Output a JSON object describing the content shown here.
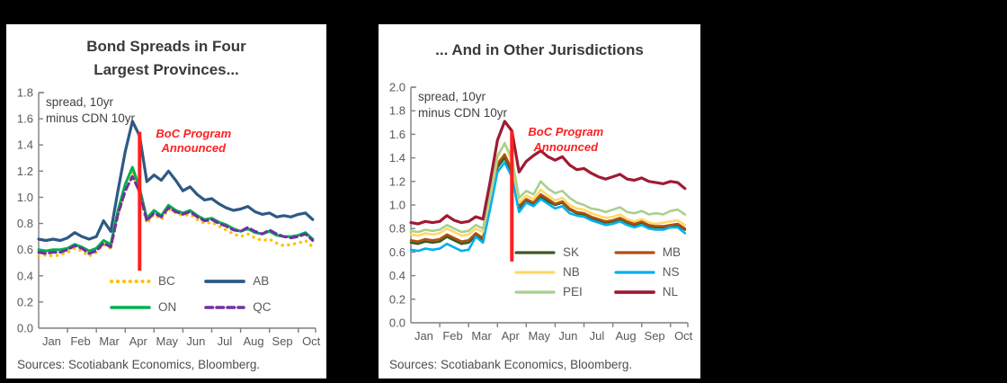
{
  "page": {
    "background": "#000000",
    "panel_background": "#ffffff"
  },
  "chart_data": [
    {
      "type": "line",
      "title": "Bond Spreads in Four\nLargest Provinces...",
      "axis_note": "spread, 10yr\nminus CDN 10yr",
      "source_note": "Sources: Scotiabank Economics, Bloomberg.",
      "x_categories": [
        "Jan",
        "Feb",
        "Mar",
        "Apr",
        "May",
        "Jun",
        "Jul",
        "Aug",
        "Sep",
        "Oct"
      ],
      "x_domain": [
        0,
        9.6
      ],
      "ylim": [
        0,
        1.8
      ],
      "y_tick_step": 0.2,
      "x_start": 0,
      "x_step": 0.25,
      "grid": false,
      "legend_position": "inside-lower-right",
      "annotation": {
        "label": "BoC Program\nAnnounced",
        "x": 3.5,
        "y_bottom": 0.44,
        "y_top": 1.5,
        "color": "#ff2020"
      },
      "legend_order": [
        "BC",
        "AB",
        "ON",
        "QC"
      ],
      "series": [
        {
          "name": "BC",
          "color": "#ffc000",
          "style": "dotted",
          "width": 3.4,
          "values": [
            0.55,
            0.56,
            0.55,
            0.56,
            0.58,
            0.61,
            0.59,
            0.55,
            0.58,
            0.64,
            0.61,
            0.86,
            1.04,
            1.19,
            1.02,
            0.8,
            0.87,
            0.83,
            0.91,
            0.88,
            0.86,
            0.87,
            0.83,
            0.8,
            0.81,
            0.78,
            0.75,
            0.72,
            0.7,
            0.72,
            0.69,
            0.67,
            0.68,
            0.65,
            0.63,
            0.64,
            0.65,
            0.67,
            0.62
          ]
        },
        {
          "name": "ON",
          "color": "#00b050",
          "style": "solid",
          "width": 3,
          "values": [
            0.6,
            0.59,
            0.6,
            0.6,
            0.61,
            0.64,
            0.62,
            0.59,
            0.61,
            0.67,
            0.64,
            0.9,
            1.1,
            1.23,
            1.07,
            0.84,
            0.9,
            0.86,
            0.94,
            0.9,
            0.88,
            0.9,
            0.86,
            0.83,
            0.84,
            0.81,
            0.79,
            0.76,
            0.74,
            0.76,
            0.73,
            0.72,
            0.74,
            0.71,
            0.7,
            0.7,
            0.71,
            0.73,
            0.68
          ]
        },
        {
          "name": "QC",
          "color": "#7030a0",
          "style": "dashed",
          "width": 3,
          "values": [
            0.58,
            0.57,
            0.58,
            0.58,
            0.6,
            0.63,
            0.61,
            0.57,
            0.59,
            0.65,
            0.62,
            0.87,
            1.05,
            1.16,
            1.04,
            0.82,
            0.88,
            0.85,
            0.92,
            0.89,
            0.87,
            0.89,
            0.85,
            0.82,
            0.83,
            0.8,
            0.78,
            0.75,
            0.74,
            0.77,
            0.74,
            0.72,
            0.75,
            0.72,
            0.7,
            0.69,
            0.7,
            0.72,
            0.67
          ]
        },
        {
          "name": "AB",
          "color": "#2e5984",
          "style": "solid",
          "width": 3.2,
          "values": [
            0.68,
            0.67,
            0.68,
            0.67,
            0.69,
            0.73,
            0.7,
            0.68,
            0.7,
            0.82,
            0.74,
            1.05,
            1.35,
            1.58,
            1.47,
            1.12,
            1.17,
            1.13,
            1.2,
            1.13,
            1.05,
            1.08,
            1.02,
            0.98,
            0.99,
            0.95,
            0.92,
            0.9,
            0.91,
            0.93,
            0.89,
            0.87,
            0.88,
            0.85,
            0.86,
            0.85,
            0.87,
            0.88,
            0.83
          ]
        }
      ]
    },
    {
      "type": "line",
      "title": "... And in Other Jurisdictions",
      "axis_note": "spread, 10yr\nminus CDN 10yr",
      "source_note": "Sources: Scotiabank Economics, Bloomberg.",
      "x_categories": [
        "Jan",
        "Feb",
        "Mar",
        "Apr",
        "May",
        "Jun",
        "Jul",
        "Aug",
        "Sep",
        "Oct"
      ],
      "x_domain": [
        0,
        9.6
      ],
      "ylim": [
        0,
        2.0
      ],
      "y_tick_step": 0.2,
      "x_start": 0,
      "x_step": 0.25,
      "grid": false,
      "legend_position": "inside-lower-right",
      "annotation": {
        "label": "BoC Program\nAnnounced",
        "x": 3.5,
        "y_bottom": 0.52,
        "y_top": 1.63,
        "color": "#ff2020"
      },
      "legend_order": [
        "SK",
        "MB",
        "NB",
        "NS",
        "PEI",
        "NL"
      ],
      "series": [
        {
          "name": "SK",
          "color": "#3c5a22",
          "style": "solid",
          "width": 2.6,
          "values": [
            0.68,
            0.67,
            0.69,
            0.68,
            0.69,
            0.73,
            0.7,
            0.67,
            0.68,
            0.74,
            0.7,
            0.98,
            1.32,
            1.4,
            1.27,
            0.97,
            1.04,
            1.01,
            1.07,
            1.03,
            1.0,
            1.02,
            0.96,
            0.93,
            0.92,
            0.89,
            0.87,
            0.85,
            0.86,
            0.88,
            0.85,
            0.83,
            0.85,
            0.82,
            0.81,
            0.81,
            0.82,
            0.83,
            0.79
          ]
        },
        {
          "name": "MB",
          "color": "#b0500f",
          "style": "solid",
          "width": 2.6,
          "values": [
            0.7,
            0.69,
            0.71,
            0.7,
            0.71,
            0.75,
            0.72,
            0.69,
            0.7,
            0.76,
            0.72,
            1.0,
            1.35,
            1.43,
            1.3,
            0.99,
            1.05,
            1.02,
            1.09,
            1.05,
            1.01,
            1.03,
            0.97,
            0.94,
            0.93,
            0.9,
            0.88,
            0.86,
            0.87,
            0.89,
            0.86,
            0.84,
            0.86,
            0.83,
            0.82,
            0.82,
            0.83,
            0.84,
            0.8
          ]
        },
        {
          "name": "NB",
          "color": "#ffd966",
          "style": "solid",
          "width": 2.6,
          "values": [
            0.75,
            0.74,
            0.76,
            0.75,
            0.76,
            0.8,
            0.77,
            0.74,
            0.75,
            0.8,
            0.77,
            1.05,
            1.4,
            1.53,
            1.36,
            1.02,
            1.08,
            1.05,
            1.13,
            1.08,
            1.04,
            1.06,
            1.0,
            0.97,
            0.96,
            0.93,
            0.91,
            0.89,
            0.9,
            0.92,
            0.88,
            0.86,
            0.88,
            0.85,
            0.84,
            0.85,
            0.86,
            0.87,
            0.83
          ]
        },
        {
          "name": "PEI",
          "color": "#a8d08d",
          "style": "solid",
          "width": 2.6,
          "values": [
            0.78,
            0.77,
            0.79,
            0.78,
            0.79,
            0.83,
            0.8,
            0.77,
            0.78,
            0.83,
            0.8,
            1.1,
            1.42,
            1.52,
            1.4,
            1.06,
            1.12,
            1.09,
            1.2,
            1.14,
            1.1,
            1.12,
            1.06,
            1.02,
            1.0,
            0.97,
            0.96,
            0.94,
            0.96,
            0.98,
            0.94,
            0.93,
            0.95,
            0.92,
            0.93,
            0.92,
            0.95,
            0.96,
            0.92
          ]
        },
        {
          "name": "NS",
          "color": "#00b0f0",
          "style": "solid",
          "width": 2.6,
          "values": [
            0.62,
            0.61,
            0.63,
            0.62,
            0.63,
            0.67,
            0.64,
            0.61,
            0.62,
            0.73,
            0.68,
            0.97,
            1.28,
            1.36,
            1.24,
            0.94,
            1.02,
            0.99,
            1.05,
            1.01,
            0.97,
            0.99,
            0.93,
            0.91,
            0.9,
            0.87,
            0.85,
            0.83,
            0.84,
            0.86,
            0.83,
            0.81,
            0.83,
            0.8,
            0.79,
            0.79,
            0.81,
            0.81,
            0.76
          ]
        },
        {
          "name": "NL",
          "color": "#a01a31",
          "style": "solid",
          "width": 3.2,
          "values": [
            0.85,
            0.84,
            0.86,
            0.85,
            0.86,
            0.91,
            0.87,
            0.85,
            0.86,
            0.9,
            0.88,
            1.2,
            1.55,
            1.71,
            1.63,
            1.28,
            1.37,
            1.42,
            1.46,
            1.41,
            1.38,
            1.41,
            1.34,
            1.3,
            1.31,
            1.27,
            1.24,
            1.22,
            1.24,
            1.26,
            1.22,
            1.21,
            1.23,
            1.2,
            1.19,
            1.18,
            1.2,
            1.19,
            1.14
          ]
        }
      ]
    }
  ]
}
